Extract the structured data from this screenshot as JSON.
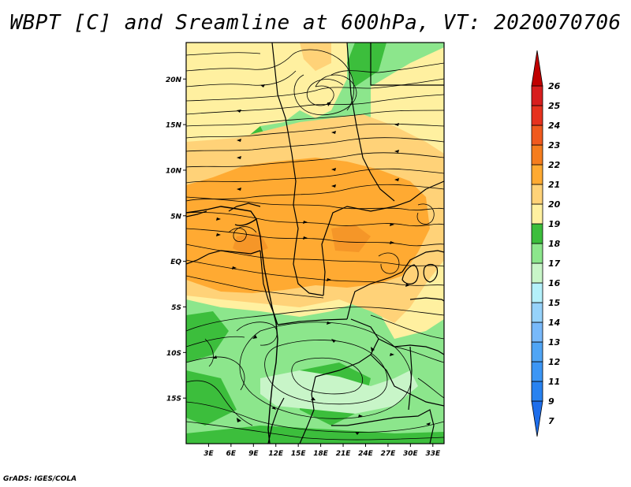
{
  "title": "WBPT [C] and Sreamline at 600hPa, VT: 2020070706",
  "footer": "GrADS: IGES/COLA",
  "map": {
    "lat_labels": [
      "20N",
      "15N",
      "10N",
      "5N",
      "EQ",
      "5S",
      "10S",
      "15S"
    ],
    "lat_values": [
      20,
      15,
      10,
      5,
      0,
      -5,
      -10,
      -15
    ],
    "lon_labels": [
      "3E",
      "6E",
      "9E",
      "12E",
      "15E",
      "18E",
      "21E",
      "24E",
      "27E",
      "30E",
      "33E"
    ],
    "lon_values": [
      3,
      6,
      9,
      12,
      15,
      18,
      21,
      24,
      27,
      30,
      33
    ],
    "lon_range": [
      0,
      34.5
    ],
    "lat_range": [
      -20,
      24
    ]
  },
  "colorbar": {
    "labels": [
      "7",
      "9",
      "11",
      "12",
      "13",
      "14",
      "15",
      "16",
      "17",
      "18",
      "19",
      "20",
      "21",
      "22",
      "23",
      "24",
      "25",
      "26"
    ],
    "colors": [
      "#1e6eeb",
      "#2882f0",
      "#3c96f5",
      "#50a5f5",
      "#78b9fa",
      "#96d2fa",
      "#b4f0fa",
      "#c8f5c8",
      "#8ce68c",
      "#3cbe3c",
      "#fff0a0",
      "#ffd278",
      "#ffaa32",
      "#f57d1e",
      "#f05a1e",
      "#e6321e",
      "#d71e1e",
      "#c00000"
    ]
  },
  "colors": {
    "green": "#8ce68c",
    "dark_green": "#3cbe3c",
    "light_green": "#c8f5c8",
    "pale_yellow": "#fff0a0",
    "yellow": "#ffd278",
    "orange": "#ffaa32"
  }
}
